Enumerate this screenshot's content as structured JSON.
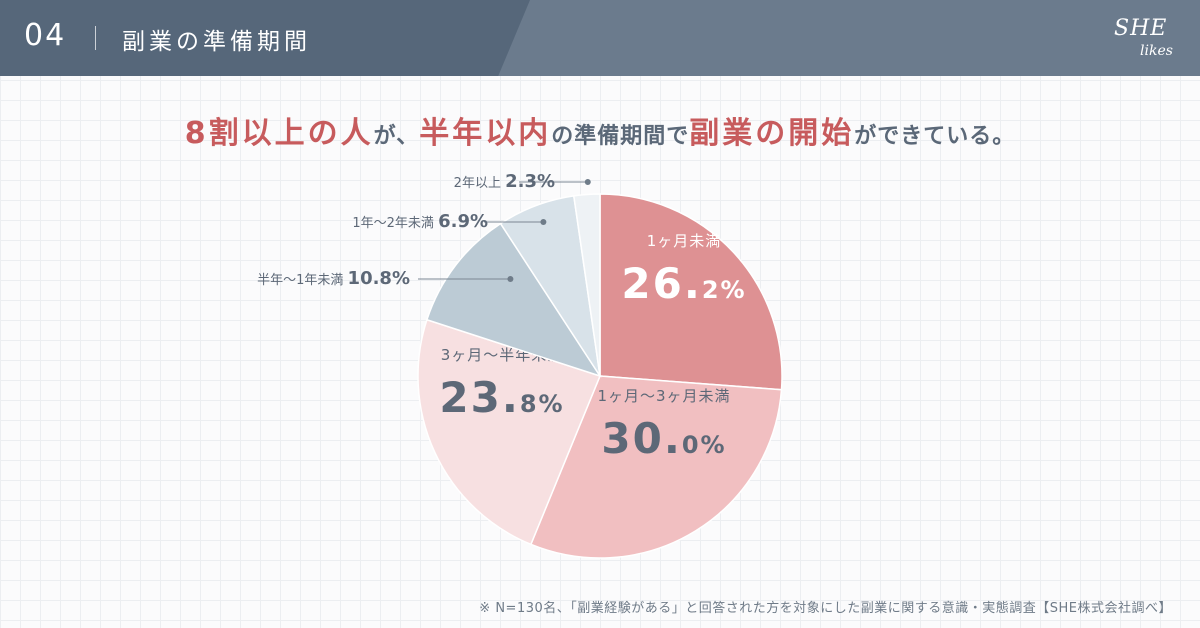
{
  "header": {
    "section_number": "04",
    "title": "副業の準備期間",
    "logo_top": "SHE",
    "logo_bottom": "likes"
  },
  "headline": {
    "parts": [
      {
        "text": "8割以上の人",
        "emphasis": true
      },
      {
        "text": "が、",
        "emphasis": false
      },
      {
        "text": "半年以内",
        "emphasis": true
      },
      {
        "text": "の準備期間で",
        "emphasis": false
      },
      {
        "text": "副業の開始",
        "emphasis": true
      },
      {
        "text": "ができている。",
        "emphasis": false
      }
    ]
  },
  "chart_data": {
    "type": "pie",
    "start": "top, clockwise",
    "slices": [
      {
        "label": "1ヶ月未満",
        "value": 26.2,
        "color": "#de9193",
        "label_color": "#ffffff",
        "label_position": "inside"
      },
      {
        "label": "1ヶ月～3ヶ月未満",
        "value": 30.0,
        "color": "#f1bfc1",
        "label_color": "#5d6877",
        "label_position": "inside"
      },
      {
        "label": "3ヶ月～半年未満",
        "value": 23.8,
        "color": "#f7e0e1",
        "label_color": "#5d6877",
        "label_position": "inside"
      },
      {
        "label": "半年～1年未満",
        "value": 10.8,
        "color": "#bccbd5",
        "label_color": "#5d6877",
        "label_position": "outside"
      },
      {
        "label": "1年～2年未満",
        "value": 6.9,
        "color": "#d8e2e9",
        "label_color": "#5d6877",
        "label_position": "outside"
      },
      {
        "label": "2年以上",
        "value": 2.3,
        "color": "#eef2f5",
        "label_color": "#5d6877",
        "label_position": "outside"
      }
    ]
  },
  "footnote": "※ N=130名、「副業経験がある」と回答された方を対象にした副業に関する意識・実態調査【SHE株式会社調べ】",
  "colors": {
    "header_bg": "#6b7b8d",
    "header_band": "#56677a",
    "accent": "#c75b5d",
    "text": "#5b6878"
  }
}
